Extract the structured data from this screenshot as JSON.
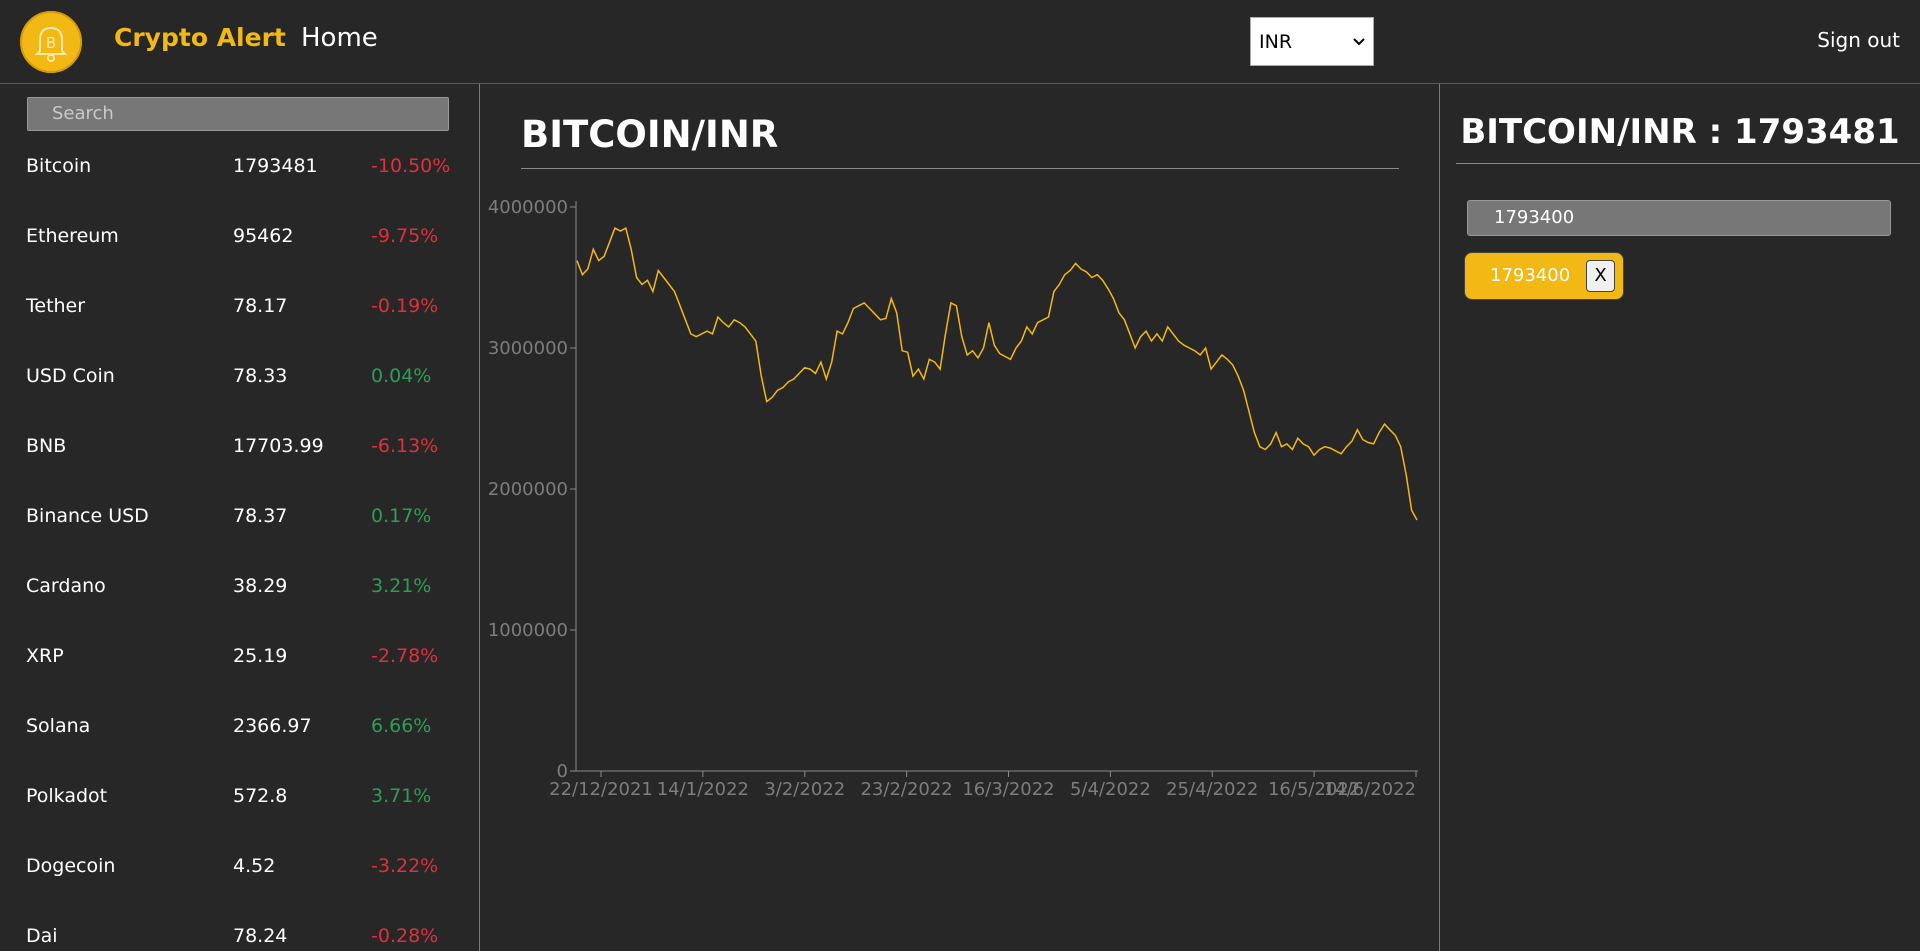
{
  "header": {
    "brand": "Crypto Alert",
    "home_label": "Home",
    "currency_selected": "INR",
    "signout_label": "Sign out"
  },
  "sidebar": {
    "search_placeholder": "Search",
    "coins": [
      {
        "name": "Bitcoin",
        "price": "1793481",
        "change": "-10.50%",
        "trend": "neg"
      },
      {
        "name": "Ethereum",
        "price": "95462",
        "change": "-9.75%",
        "trend": "neg"
      },
      {
        "name": "Tether",
        "price": "78.17",
        "change": "-0.19%",
        "trend": "neg"
      },
      {
        "name": "USD Coin",
        "price": "78.33",
        "change": "0.04%",
        "trend": "pos"
      },
      {
        "name": "BNB",
        "price": "17703.99",
        "change": "-6.13%",
        "trend": "neg"
      },
      {
        "name": "Binance USD",
        "price": "78.37",
        "change": "0.17%",
        "trend": "pos"
      },
      {
        "name": "Cardano",
        "price": "38.29",
        "change": "3.21%",
        "trend": "pos"
      },
      {
        "name": "XRP",
        "price": "25.19",
        "change": "-2.78%",
        "trend": "neg"
      },
      {
        "name": "Solana",
        "price": "2366.97",
        "change": "6.66%",
        "trend": "pos"
      },
      {
        "name": "Polkadot",
        "price": "572.8",
        "change": "3.71%",
        "trend": "pos"
      },
      {
        "name": "Dogecoin",
        "price": "4.52",
        "change": "-3.22%",
        "trend": "neg"
      },
      {
        "name": "Dai",
        "price": "78.24",
        "change": "-0.28%",
        "trend": "neg"
      }
    ]
  },
  "main": {
    "title": "BITCOIN/INR"
  },
  "chart_data": {
    "type": "line",
    "title": "",
    "xlabel": "",
    "ylabel": "",
    "ylim": [
      0,
      4000000
    ],
    "yticks": [
      "0",
      "1000000",
      "2000000",
      "3000000",
      "4000000"
    ],
    "xticks": [
      "22/12/2021",
      "14/1/2022",
      "3/2/2022",
      "23/2/2022",
      "16/3/2022",
      "5/4/2022",
      "25/4/2022",
      "16/5/2022",
      "14/6/2022"
    ],
    "grid": false,
    "color": "#f2b813",
    "series": [
      {
        "values": [
          3620000,
          3520000,
          3560000,
          3700000,
          3620000,
          3650000,
          3750000,
          3850000,
          3830000,
          3850000,
          3700000,
          3500000,
          3450000,
          3480000,
          3400000,
          3550000,
          3500000,
          3450000,
          3400000,
          3300000,
          3200000,
          3100000,
          3080000,
          3100000,
          3120000,
          3100000,
          3220000,
          3180000,
          3150000,
          3200000,
          3180000,
          3150000,
          3100000,
          3050000,
          2800000,
          2620000,
          2650000,
          2700000,
          2720000,
          2760000,
          2780000,
          2820000,
          2860000,
          2850000,
          2820000,
          2900000,
          2780000,
          2900000,
          3120000,
          3100000,
          3180000,
          3280000,
          3300000,
          3320000,
          3280000,
          3240000,
          3200000,
          3210000,
          3350000,
          3250000,
          2980000,
          2970000,
          2800000,
          2850000,
          2780000,
          2920000,
          2900000,
          2850000,
          3100000,
          3320000,
          3300000,
          3080000,
          2950000,
          2980000,
          2930000,
          3000000,
          3180000,
          3020000,
          2960000,
          2940000,
          2920000,
          3000000,
          3050000,
          3150000,
          3100000,
          3180000,
          3200000,
          3220000,
          3400000,
          3450000,
          3520000,
          3550000,
          3600000,
          3560000,
          3540000,
          3500000,
          3520000,
          3480000,
          3420000,
          3350000,
          3250000,
          3200000,
          3100000,
          3000000,
          3080000,
          3120000,
          3050000,
          3100000,
          3050000,
          3150000,
          3100000,
          3050000,
          3020000,
          3000000,
          2980000,
          2950000,
          3000000,
          2850000,
          2900000,
          2950000,
          2920000,
          2880000,
          2800000,
          2700000,
          2550000,
          2400000,
          2300000,
          2280000,
          2320000,
          2400000,
          2300000,
          2320000,
          2280000,
          2360000,
          2320000,
          2300000,
          2240000,
          2280000,
          2300000,
          2290000,
          2270000,
          2250000,
          2300000,
          2340000,
          2420000,
          2350000,
          2330000,
          2320000,
          2400000,
          2460000,
          2420000,
          2380000,
          2300000,
          2100000,
          1850000,
          1780000
        ]
      }
    ]
  },
  "alerts": {
    "heading": "BITCOIN/INR : 1793481",
    "input_value": "1793400",
    "items": [
      {
        "value": "1793400",
        "remove_label": "X"
      }
    ]
  }
}
